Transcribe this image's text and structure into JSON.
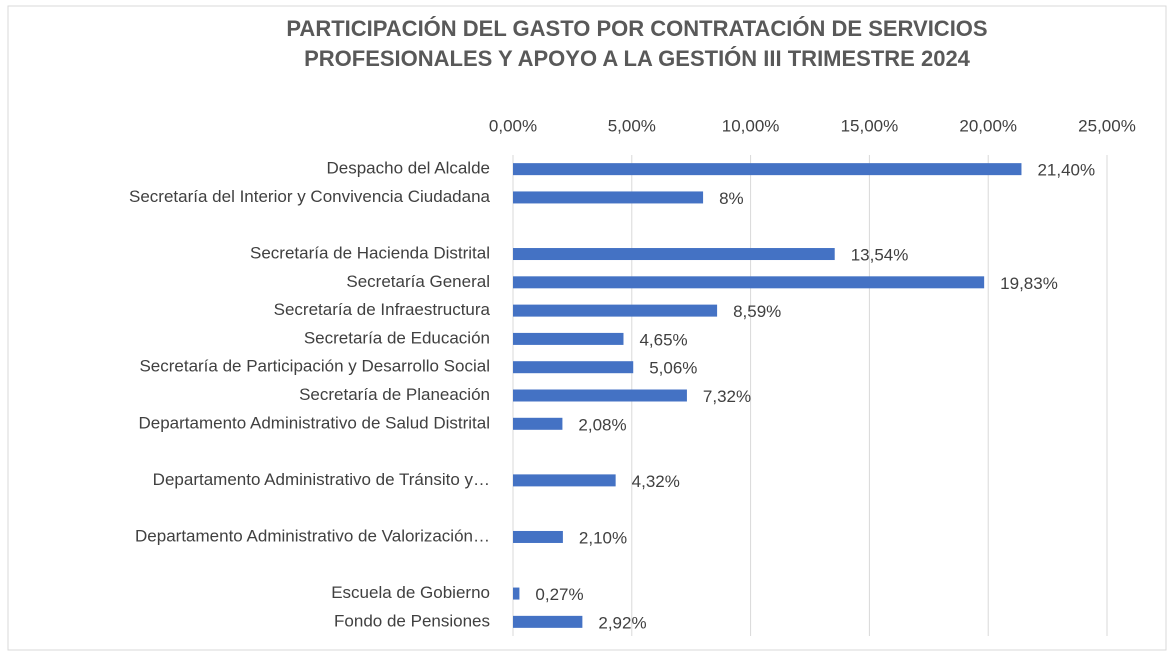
{
  "chart_data": {
    "type": "barh",
    "title": [
      "PARTICIPACIÓN DEL GASTO POR CONTRATACIÓN DE SERVICIOS",
      "PROFESIONALES Y APOYO A LA GESTIÓN III TRIMESTRE 2024"
    ],
    "categories": [
      "Despacho del Alcalde",
      "Secretaría del Interior y Convivencia Ciudadana",
      null,
      "Secretaría de Hacienda Distrital",
      "Secretaría General",
      "Secretaría de Infraestructura",
      "Secretaría de Educación",
      "Secretaría de Participación y Desarrollo Social",
      "Secretaría de Planeación",
      "Departamento Administrativo de Salud Distrital",
      null,
      "Departamento Administrativo de Tránsito y…",
      null,
      "Departamento Administrativo de Valorización…",
      null,
      "Escuela de Gobierno",
      "Fondo de Pensiones"
    ],
    "values": [
      21.4,
      8,
      null,
      13.54,
      19.83,
      8.59,
      4.65,
      5.06,
      7.32,
      2.08,
      null,
      4.32,
      null,
      2.1,
      null,
      0.27,
      2.92
    ],
    "value_labels": [
      "21,40%",
      "8%",
      null,
      "13,54%",
      "19,83%",
      "8,59%",
      "4,65%",
      "5,06%",
      "7,32%",
      "2,08%",
      null,
      "4,32%",
      null,
      "2,10%",
      null,
      "0,27%",
      "2,92%"
    ],
    "color": "#4472c4",
    "xlim": [
      0,
      25
    ],
    "xticks": [
      {
        "value": 0,
        "label": "0,00%"
      },
      {
        "value": 5,
        "label": "5,00%"
      },
      {
        "value": 10,
        "label": "10,00%"
      },
      {
        "value": 15,
        "label": "15,00%"
      },
      {
        "value": 20,
        "label": "20,00%"
      },
      {
        "value": 25,
        "label": "25,00%"
      }
    ],
    "grid": true
  }
}
